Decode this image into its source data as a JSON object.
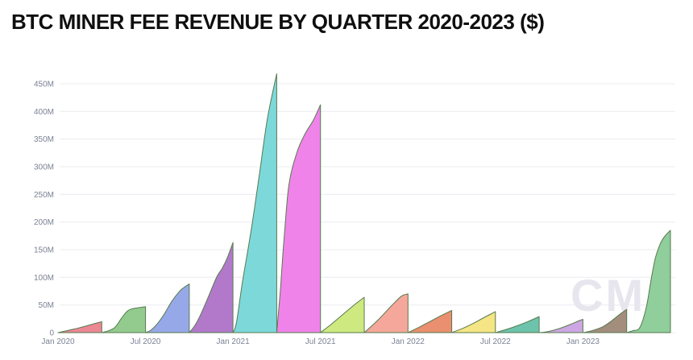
{
  "page": {
    "title": "BTC MINER FEE REVENUE BY QUARTER 2020-2023 ($)",
    "watermark": "CM"
  },
  "chart_data": {
    "type": "area",
    "title": "BTC MINER FEE REVENUE BY QUARTER 2020-2023 ($)",
    "xlabel": "",
    "ylabel": "",
    "unit": "USD, M = millions",
    "ylim": [
      0,
      470
    ],
    "grid": true,
    "legend": "none",
    "y_ticks": [
      "0",
      "50M",
      "100M",
      "150M",
      "200M",
      "250M",
      "300M",
      "350M",
      "400M",
      "450M"
    ],
    "y_tick_values_m": [
      0,
      50,
      100,
      150,
      200,
      250,
      300,
      350,
      400,
      450
    ],
    "x_ticks": [
      "Jan 2020",
      "Jul 2020",
      "Jan 2021",
      "Jul 2021",
      "Jan 2022",
      "Jul 2022",
      "Jan 2023"
    ],
    "categories": [
      "Q1 2020",
      "Q2 2020",
      "Q3 2020",
      "Q4 2020",
      "Q1 2021",
      "Q2 2021",
      "Q3 2021",
      "Q4 2021",
      "Q1 2022",
      "Q2 2022",
      "Q3 2022",
      "Q4 2022",
      "Q1 2023",
      "Q2 2023"
    ],
    "values_usd_m": [
      20,
      47,
      88,
      163,
      468,
      412,
      64,
      70,
      40,
      38,
      29,
      24,
      42,
      185
    ],
    "line_color": "#567a4f",
    "grid_color": "#ececf1",
    "axis_label_color": "#7b8294",
    "watermark_color": "#e7e5ee",
    "series": [
      {
        "name": "Q1 2020",
        "peak_usd_m": 20,
        "fill": "#EC8794",
        "profile": [
          [
            0,
            0
          ],
          [
            0.25,
            0.22
          ],
          [
            0.5,
            0.45
          ],
          [
            0.75,
            0.72
          ],
          [
            1,
            1
          ]
        ]
      },
      {
        "name": "Q2 2020",
        "peak_usd_m": 47,
        "fill": "#93CB8E",
        "profile": [
          [
            0,
            0
          ],
          [
            0.15,
            0.07
          ],
          [
            0.3,
            0.2
          ],
          [
            0.45,
            0.55
          ],
          [
            0.58,
            0.82
          ],
          [
            0.7,
            0.92
          ],
          [
            0.85,
            0.96
          ],
          [
            1,
            1
          ]
        ]
      },
      {
        "name": "Q3 2020",
        "peak_usd_m": 88,
        "fill": "#97A8E8",
        "profile": [
          [
            0,
            0
          ],
          [
            0.12,
            0.05
          ],
          [
            0.25,
            0.16
          ],
          [
            0.42,
            0.37
          ],
          [
            0.6,
            0.64
          ],
          [
            0.78,
            0.85
          ],
          [
            0.9,
            0.94
          ],
          [
            1,
            1
          ]
        ]
      },
      {
        "name": "Q4 2020",
        "peak_usd_m": 163,
        "fill": "#B279CB",
        "profile": [
          [
            0,
            0
          ],
          [
            0.13,
            0.08
          ],
          [
            0.26,
            0.2
          ],
          [
            0.44,
            0.4
          ],
          [
            0.63,
            0.62
          ],
          [
            0.75,
            0.71
          ],
          [
            0.87,
            0.83
          ],
          [
            1,
            1
          ]
        ]
      },
      {
        "name": "Q1 2021",
        "peak_usd_m": 468,
        "fill": "#7DD8DA",
        "profile": [
          [
            0,
            0
          ],
          [
            0.08,
            0.04
          ],
          [
            0.22,
            0.2
          ],
          [
            0.42,
            0.4
          ],
          [
            0.61,
            0.62
          ],
          [
            0.79,
            0.83
          ],
          [
            1,
            1
          ]
        ]
      },
      {
        "name": "Q2 2021",
        "peak_usd_m": 412,
        "fill": "#F083E9",
        "profile": [
          [
            0,
            0
          ],
          [
            0.08,
            0.18
          ],
          [
            0.17,
            0.42
          ],
          [
            0.28,
            0.65
          ],
          [
            0.46,
            0.79
          ],
          [
            0.64,
            0.87
          ],
          [
            0.83,
            0.93
          ],
          [
            1,
            1
          ]
        ]
      },
      {
        "name": "Q3 2021",
        "peak_usd_m": 64,
        "fill": "#CFE981",
        "profile": [
          [
            0,
            0
          ],
          [
            0.25,
            0.24
          ],
          [
            0.5,
            0.5
          ],
          [
            0.75,
            0.76
          ],
          [
            1,
            1
          ]
        ]
      },
      {
        "name": "Q4 2021",
        "peak_usd_m": 70,
        "fill": "#F4A79A",
        "profile": [
          [
            0,
            0
          ],
          [
            0.3,
            0.31
          ],
          [
            0.62,
            0.69
          ],
          [
            0.85,
            0.94
          ],
          [
            1,
            1
          ]
        ]
      },
      {
        "name": "Q1 2022",
        "peak_usd_m": 40,
        "fill": "#EA8F6F",
        "profile": [
          [
            0,
            0
          ],
          [
            0.25,
            0.24
          ],
          [
            0.5,
            0.5
          ],
          [
            0.75,
            0.76
          ],
          [
            1,
            1
          ]
        ]
      },
      {
        "name": "Q2 2022",
        "peak_usd_m": 38,
        "fill": "#F5E584",
        "profile": [
          [
            0,
            0
          ],
          [
            0.25,
            0.2
          ],
          [
            0.5,
            0.45
          ],
          [
            0.75,
            0.73
          ],
          [
            1,
            1
          ]
        ]
      },
      {
        "name": "Q3 2022",
        "peak_usd_m": 29,
        "fill": "#6DC3AC",
        "profile": [
          [
            0,
            0
          ],
          [
            0.25,
            0.2
          ],
          [
            0.5,
            0.43
          ],
          [
            0.75,
            0.7
          ],
          [
            1,
            1
          ]
        ]
      },
      {
        "name": "Q4 2022",
        "peak_usd_m": 24,
        "fill": "#CDA6E3",
        "profile": [
          [
            0,
            0
          ],
          [
            0.2,
            0.08
          ],
          [
            0.45,
            0.3
          ],
          [
            0.7,
            0.6
          ],
          [
            0.9,
            0.88
          ],
          [
            1,
            1
          ]
        ]
      },
      {
        "name": "Q1 2023",
        "peak_usd_m": 42,
        "fill": "#A38D7D",
        "profile": [
          [
            0,
            0
          ],
          [
            0.2,
            0.08
          ],
          [
            0.45,
            0.25
          ],
          [
            0.65,
            0.5
          ],
          [
            0.85,
            0.8
          ],
          [
            1,
            1
          ]
        ]
      },
      {
        "name": "Q2 2023",
        "peak_usd_m": 185,
        "fill": "#90CE9B",
        "profile": [
          [
            0,
            0
          ],
          [
            0.15,
            0.02
          ],
          [
            0.3,
            0.05
          ],
          [
            0.45,
            0.25
          ],
          [
            0.55,
            0.5
          ],
          [
            0.65,
            0.72
          ],
          [
            0.75,
            0.85
          ],
          [
            0.85,
            0.93
          ],
          [
            1,
            1
          ]
        ]
      }
    ]
  }
}
